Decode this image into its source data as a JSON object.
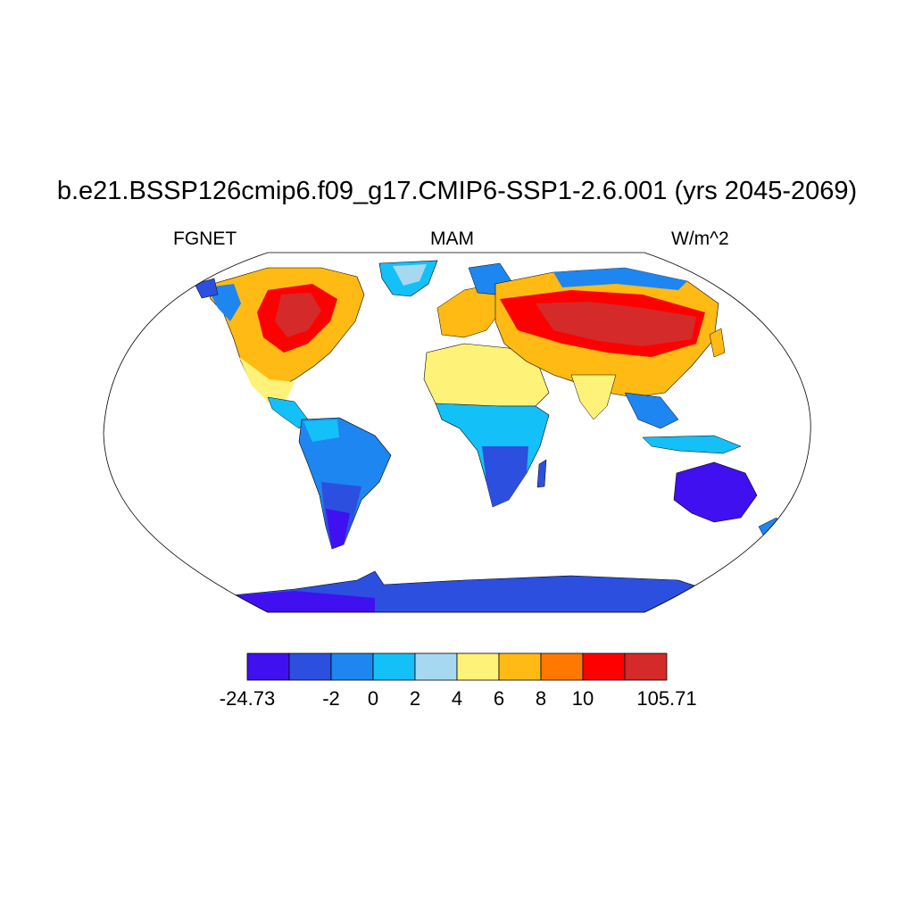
{
  "header": {
    "title": "b.e21.BSSP126cmip6.f09_g17.CMIP6-SSP1-2.6.001 (yrs 2045-2069)",
    "left_label": "FGNET",
    "center_label": "MAM",
    "right_label": "W/m^2"
  },
  "colorbar": {
    "colors": [
      "#4010f0",
      "#2c4fe0",
      "#1e86f0",
      "#14c0f8",
      "#a6d8f2",
      "#fff278",
      "#ffba14",
      "#ff7800",
      "#ff0000",
      "#d42a2a"
    ],
    "labels": [
      "-24.73",
      "-2",
      "0",
      "2",
      "4",
      "6",
      "8",
      "10",
      "105.71"
    ]
  },
  "map_legend": {
    "ocean": "#ffffff",
    "coastline": "#000000"
  }
}
